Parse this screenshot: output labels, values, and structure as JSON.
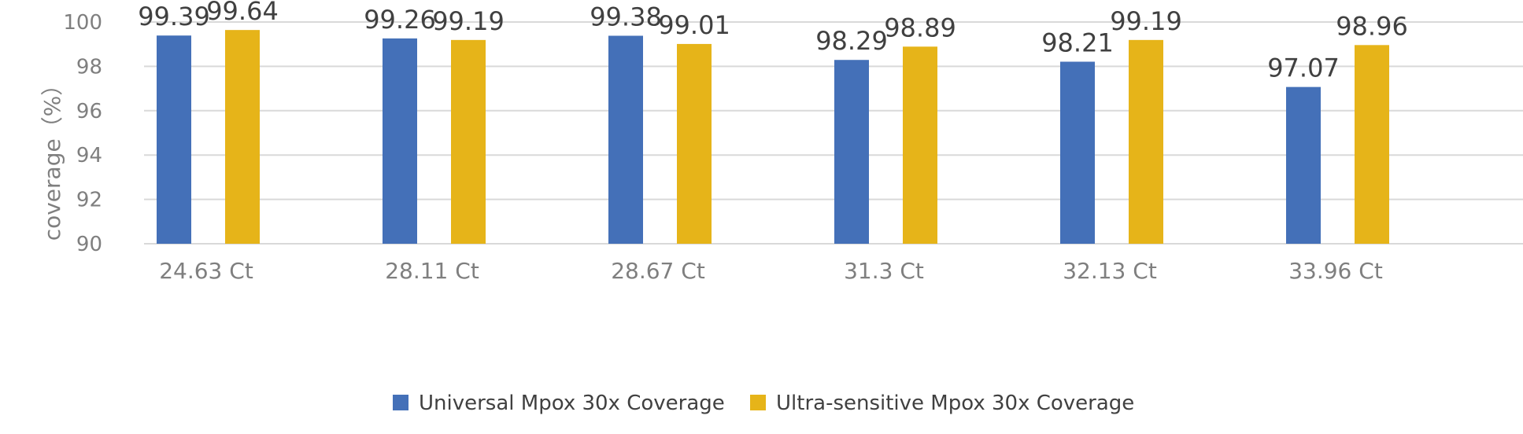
{
  "chart_data": {
    "type": "bar",
    "categories": [
      "24.63 Ct",
      "28.11 Ct",
      "28.67 Ct",
      "31.3 Ct",
      "32.13 Ct",
      "33.96 Ct"
    ],
    "series": [
      {
        "name": "Universal Mpox 30x Coverage",
        "color": "#4470b8",
        "values": [
          99.39,
          99.26,
          99.38,
          98.29,
          98.21,
          97.07
        ]
      },
      {
        "name": "Ultra-sensitive Mpox 30x Coverage",
        "color": "#e6b419",
        "values": [
          99.64,
          99.19,
          99.01,
          98.89,
          99.19,
          98.96
        ]
      }
    ],
    "ylabel": "coverage（%）",
    "xlabel": "",
    "ylim": [
      90,
      100
    ],
    "yticks": [
      90,
      92,
      94,
      96,
      98,
      100
    ],
    "grid": true,
    "legend_position": "bottom"
  }
}
